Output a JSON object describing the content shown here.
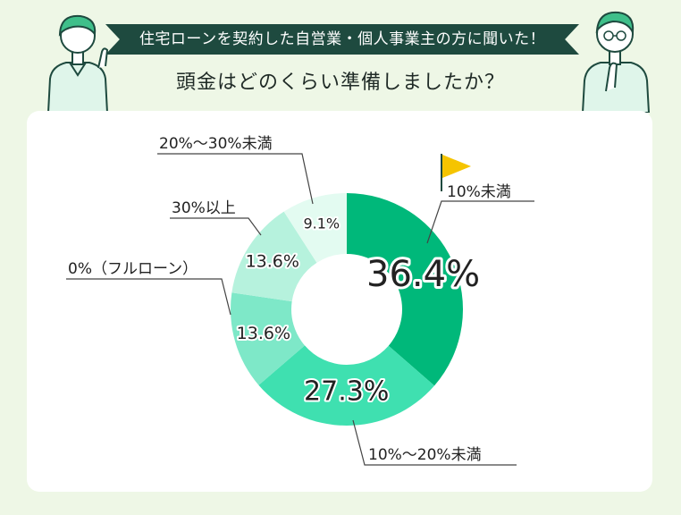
{
  "header": {
    "banner": "住宅ローンを契約した自営業・個人事業主の方に聞いた！",
    "question": "頭金はどのくらい準備しましたか？"
  },
  "colors": {
    "background": "#eef7e6",
    "banner": "#1e4a3f",
    "flag": "#f5c400",
    "slices": [
      "#00b87a",
      "#3fe0b0",
      "#7ee8c8",
      "#b6f2dd",
      "#e3fbf1"
    ]
  },
  "icons": [
    "person-pointing-icon",
    "person-thinking-icon",
    "flag-icon"
  ],
  "chart_data": {
    "type": "pie",
    "title": "",
    "donut": true,
    "categories": [
      "10%未満",
      "10%〜20%未満",
      "0%（フルローン）",
      "30%以上",
      "20%〜30%未満"
    ],
    "values": [
      36.4,
      27.3,
      13.6,
      13.6,
      9.1
    ],
    "labels": [
      "36.4%",
      "27.3%",
      "13.6%",
      "13.6%",
      "9.1%"
    ],
    "highlight": "10%未満"
  }
}
